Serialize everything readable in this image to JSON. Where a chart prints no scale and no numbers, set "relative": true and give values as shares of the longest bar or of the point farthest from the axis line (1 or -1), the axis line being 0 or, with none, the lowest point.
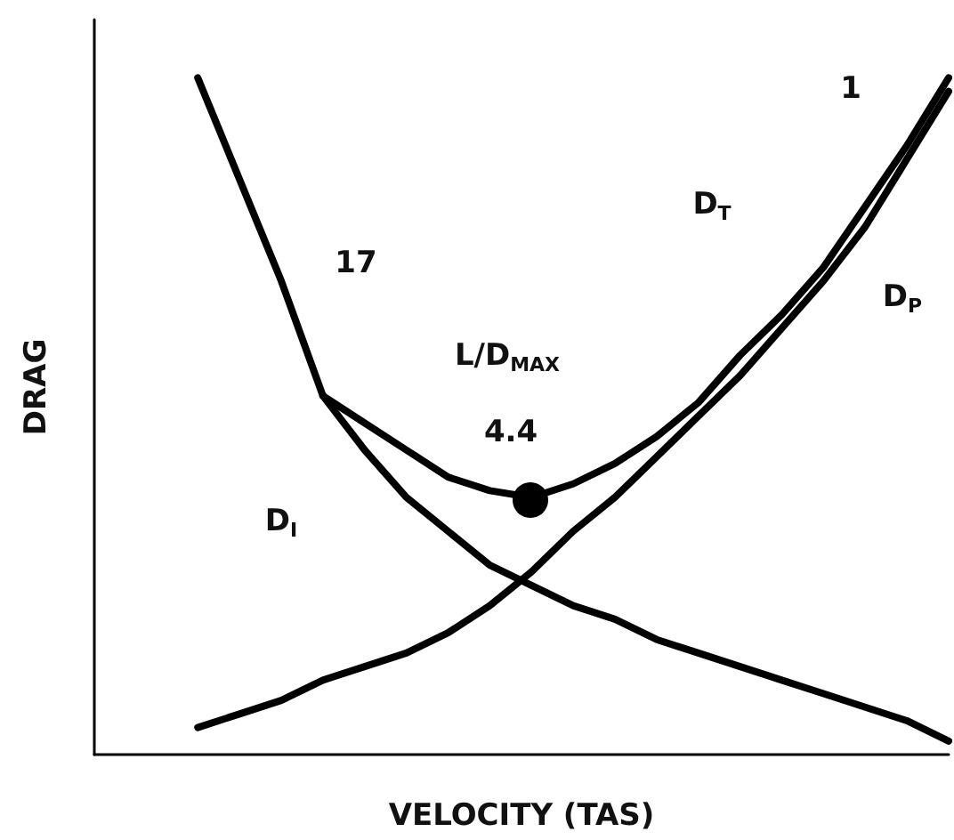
{
  "chart_data": {
    "type": "line",
    "relative": true,
    "xlabel": "VELOCITY (TAS)",
    "ylabel": "DRAG",
    "categories": [
      null,
      null,
      null,
      null,
      null,
      null,
      null,
      null,
      null,
      null,
      null,
      null,
      null,
      null,
      null,
      null,
      null,
      null,
      null
    ],
    "series": [
      {
        "color": "#000000",
        "values": [
          1.0,
          0.85,
          0.7,
          0.53,
          0.45,
          0.38,
          0.33,
          0.28,
          0.25,
          0.22,
          0.2,
          0.17,
          0.15,
          0.13,
          0.11,
          0.09,
          0.07,
          0.05,
          0.02
        ]
      },
      {
        "color": "#000000",
        "values": [
          0.04,
          0.06,
          0.08,
          0.11,
          0.13,
          0.15,
          0.18,
          0.22,
          0.27,
          0.33,
          0.38,
          0.44,
          0.5,
          0.56,
          0.63,
          0.7,
          0.78,
          0.88,
          0.98
        ]
      },
      {
        "color": "#000000",
        "values": [
          null,
          null,
          null,
          0.53,
          0.49,
          0.45,
          0.41,
          0.39,
          0.38,
          0.4,
          0.43,
          0.47,
          0.52,
          0.59,
          0.65,
          0.72,
          0.81,
          0.9,
          1.0
        ]
      }
    ],
    "annotations": [
      "17",
      "1",
      "L/D$_{MAX}$",
      "4.4",
      "D$_{T}$",
      "D$_{P}$",
      "D$_{I}$"
    ],
    "marker": "none",
    "line_style": "solid"
  }
}
